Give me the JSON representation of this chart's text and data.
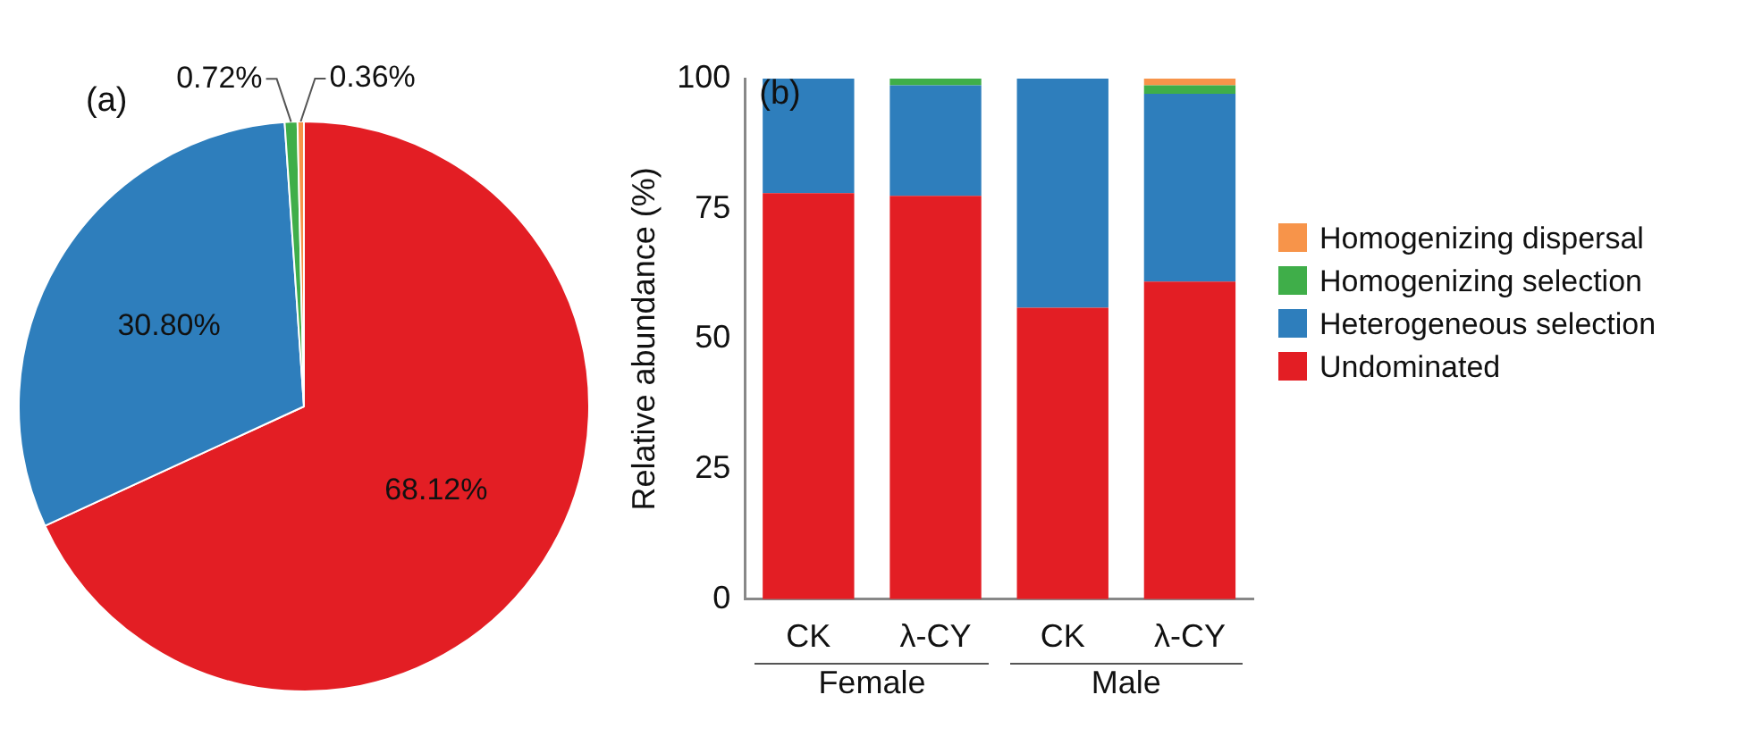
{
  "chart_data": [
    {
      "type": "pie",
      "title": "(a)",
      "categories": [
        null,
        null,
        null,
        null
      ],
      "values": [
        68.12,
        30.8,
        0.72,
        0.36
      ],
      "colors": [
        "#e31e24",
        "#2e7ebc",
        "#3fae49",
        "#f7944a"
      ],
      "value_labels": [
        "68.12%",
        "30.80%",
        "0.72%",
        "0.36%"
      ]
    },
    {
      "type": "bar",
      "title": "(b)",
      "stacked": true,
      "ylabel": "Relative abundance (%)",
      "categories": [
        "CK",
        "λ-CY",
        "CK",
        "λ-CY"
      ],
      "annotations": [
        "Female",
        "Male"
      ],
      "series": [
        {
          "name": "Undominated",
          "color": "#e31e24",
          "values": [
            78,
            77.5,
            56,
            61
          ]
        },
        {
          "name": "Heterogeneous selection",
          "color": "#2e7ebc",
          "values": [
            22,
            21.2,
            44,
            36.1
          ]
        },
        {
          "name": "Homogenizing selection",
          "color": "#3fae49",
          "values": [
            0,
            1.3,
            0,
            1.6
          ]
        },
        {
          "name": "Homogenizing dispersal",
          "color": "#f7944a",
          "values": [
            0,
            0,
            0,
            1.3
          ]
        }
      ],
      "ylim": [
        0,
        100
      ],
      "yticks": [
        0,
        25,
        50,
        75,
        100
      ],
      "grid": false,
      "legend": "right"
    }
  ]
}
